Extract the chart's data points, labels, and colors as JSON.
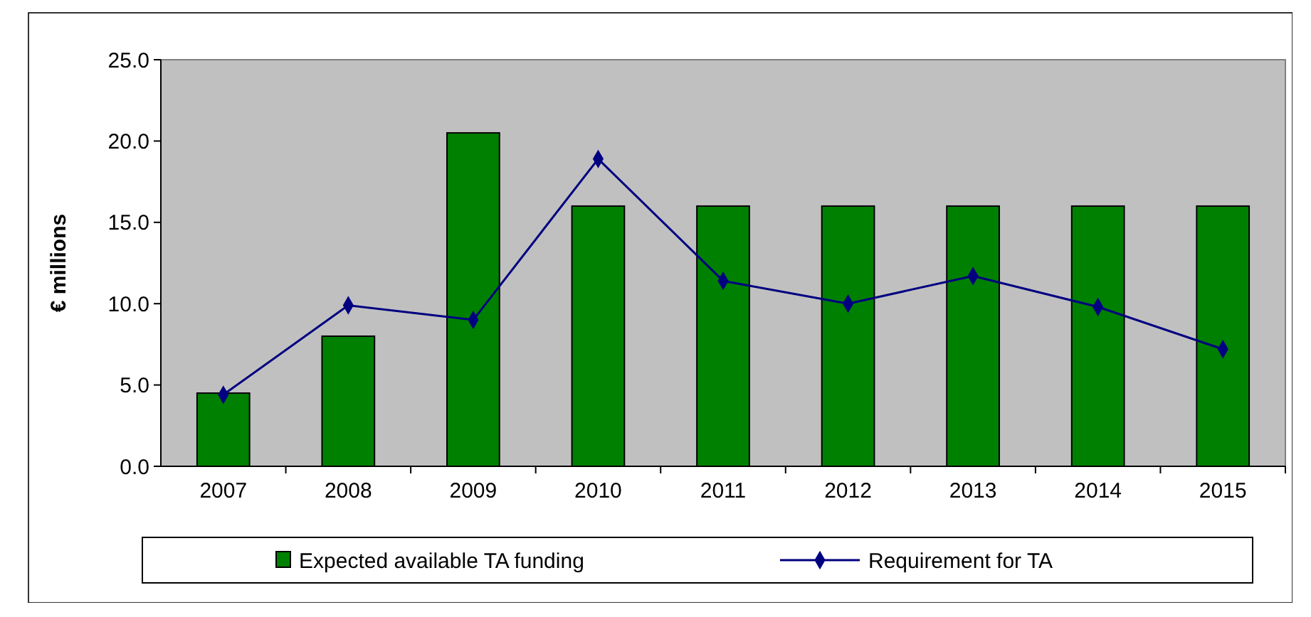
{
  "chart_data": {
    "type": "bar",
    "ylabel": "€ millions",
    "categories": [
      "2007",
      "2008",
      "2009",
      "2010",
      "2011",
      "2012",
      "2013",
      "2014",
      "2015"
    ],
    "series": [
      {
        "name": "Expected available TA funding",
        "color": "#008000",
        "values": [
          4.5,
          8.0,
          20.5,
          16.0,
          16.0,
          16.0,
          16.0,
          16.0,
          16.0
        ]
      },
      {
        "name": "Requirement for TA",
        "type": "line",
        "color": "#000080",
        "marker": "diamond",
        "values": [
          4.4,
          9.9,
          9.0,
          18.9,
          11.4,
          10.0,
          11.7,
          9.8,
          7.2
        ]
      }
    ],
    "ylim": [
      0,
      25
    ],
    "yticks": [
      {
        "value": 0,
        "label": "0.0"
      },
      {
        "value": 5,
        "label": "5.0"
      },
      {
        "value": 10,
        "label": "10.0"
      },
      {
        "value": 15,
        "label": "15.0"
      },
      {
        "value": 20,
        "label": "20.0"
      },
      {
        "value": 25,
        "label": "25.0"
      }
    ],
    "grid": false,
    "legend": "bottom"
  }
}
